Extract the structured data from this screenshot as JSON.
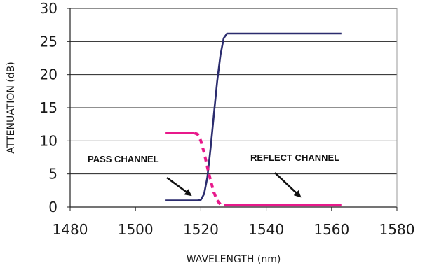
{
  "chart_data": {
    "type": "line",
    "title": "",
    "xlabel": "WAVELENGTH (nm)",
    "ylabel": "ATTENUATION (dB)",
    "xlim": [
      1480,
      1580
    ],
    "ylim": [
      0,
      30
    ],
    "x_ticks": [
      1480,
      1500,
      1520,
      1540,
      1560,
      1580
    ],
    "y_ticks": [
      0,
      5,
      10,
      15,
      20,
      25,
      30
    ],
    "grid": "horizontal",
    "series": [
      {
        "name": "PASS CHANNEL",
        "color": "#2b2c6e",
        "style": "solid",
        "x": [
          1509,
          1519,
          1520,
          1521,
          1522,
          1523,
          1524,
          1525,
          1526,
          1527,
          1528,
          1563
        ],
        "y": [
          1,
          1,
          1.1,
          2,
          4.5,
          9,
          14,
          19,
          23,
          25.5,
          26.2,
          26.2
        ]
      },
      {
        "name": "REFLECT CHANNEL",
        "color": "#e8198b",
        "style": "mixed",
        "x": [
          1509,
          1518,
          1519,
          1520,
          1521,
          1522,
          1523,
          1524,
          1525,
          1526,
          1527,
          1563
        ],
        "y": [
          11.2,
          11.2,
          11,
          10,
          8.2,
          6,
          4,
          2.2,
          1,
          0.4,
          0.3,
          0.3
        ]
      }
    ],
    "annotations": [
      {
        "text": "PASS CHANNEL",
        "target_series": 0
      },
      {
        "text": "REFLECT CHANNEL",
        "target_series": 1
      }
    ]
  }
}
